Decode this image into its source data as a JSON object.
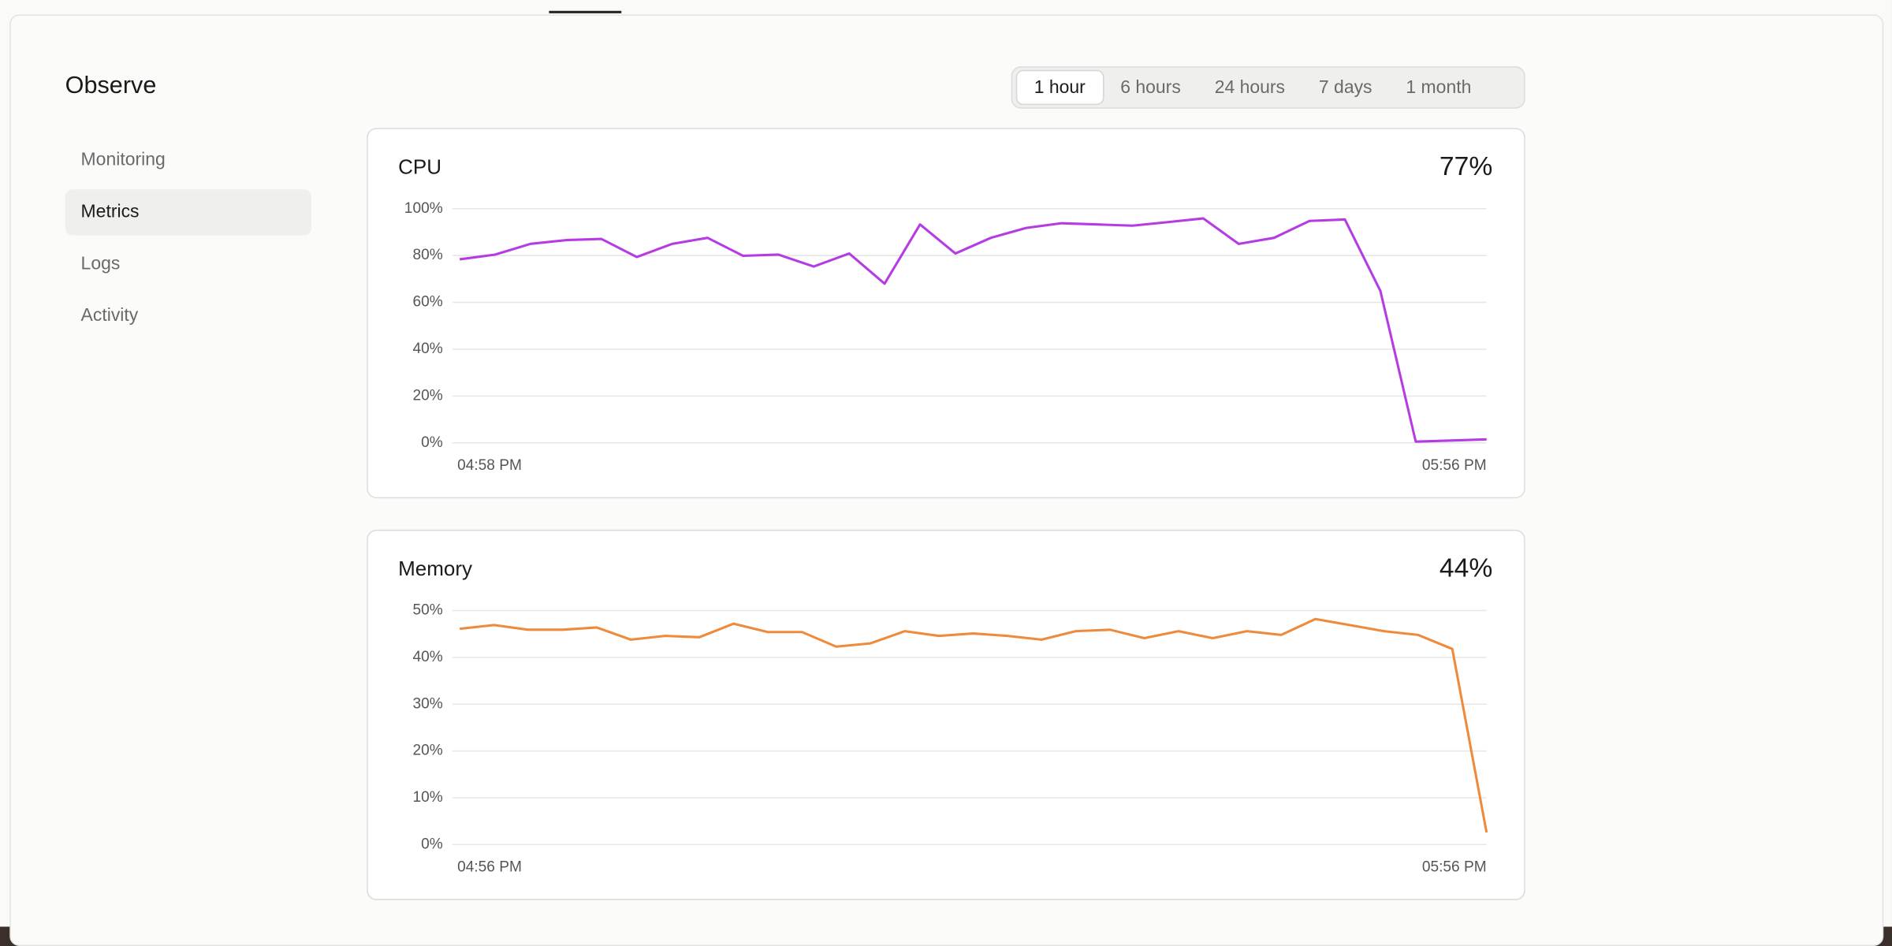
{
  "sidebar": {
    "title": "Observe",
    "items": [
      "Monitoring",
      "Metrics",
      "Logs",
      "Activity"
    ],
    "active": 1
  },
  "time_range": {
    "options": [
      "1 hour",
      "6 hours",
      "24 hours",
      "7 days",
      "1 month"
    ],
    "selected": 0
  },
  "charts": [
    {
      "type": "line",
      "title": "CPU",
      "current": "77%",
      "color": "#b53be2",
      "categories": [
        "04:58 PM",
        null,
        null,
        null,
        null,
        null,
        null,
        null,
        null,
        null,
        null,
        null,
        null,
        null,
        null,
        null,
        null,
        null,
        null,
        null,
        null,
        null,
        null,
        null,
        null,
        null,
        null,
        null,
        null,
        "05:56 PM"
      ],
      "values": [
        78.4,
        80.4,
        85,
        86.6,
        87.1,
        79.4,
        85,
        87.6,
        79.9,
        80.4,
        75.3,
        80.9,
        68,
        93.3,
        80.9,
        87.6,
        91.8,
        93.8,
        93.3,
        92.8,
        94.3,
        95.9,
        85,
        87.6,
        94.8,
        95.4,
        64.9,
        0.5,
        1,
        1.5
      ],
      "ylim": [
        0,
        100
      ],
      "yticks": [
        {
          "value": 0,
          "label": "0%"
        },
        {
          "value": 20,
          "label": "20%"
        },
        {
          "value": 40,
          "label": "40%"
        },
        {
          "value": 60,
          "label": "60%"
        },
        {
          "value": 80,
          "label": "80%"
        },
        {
          "value": 100,
          "label": "100%"
        }
      ],
      "grid": true
    },
    {
      "type": "line",
      "title": "Memory",
      "current": "44%",
      "color": "#ee8a3c",
      "categories": [
        "04:56 PM",
        null,
        null,
        null,
        null,
        null,
        null,
        null,
        null,
        null,
        null,
        null,
        null,
        null,
        null,
        null,
        null,
        null,
        null,
        null,
        null,
        null,
        null,
        null,
        null,
        null,
        null,
        null,
        null,
        null,
        "05:56 PM"
      ],
      "values": [
        46.1,
        46.9,
        45.9,
        45.9,
        46.4,
        43.8,
        44.6,
        44.3,
        47.2,
        45.4,
        45.4,
        42.3,
        43,
        45.6,
        44.6,
        45.1,
        44.6,
        43.8,
        45.6,
        45.9,
        44.1,
        45.6,
        44.1,
        45.6,
        44.8,
        48.2,
        46.9,
        45.6,
        44.8,
        41.8,
        2.6
      ],
      "ylim": [
        0,
        50
      ],
      "yticks": [
        {
          "value": 0,
          "label": "0%"
        },
        {
          "value": 10,
          "label": "10%"
        },
        {
          "value": 20,
          "label": "20%"
        },
        {
          "value": 30,
          "label": "30%"
        },
        {
          "value": 40,
          "label": "40%"
        },
        {
          "value": 50,
          "label": "50%"
        }
      ],
      "grid": true
    }
  ]
}
